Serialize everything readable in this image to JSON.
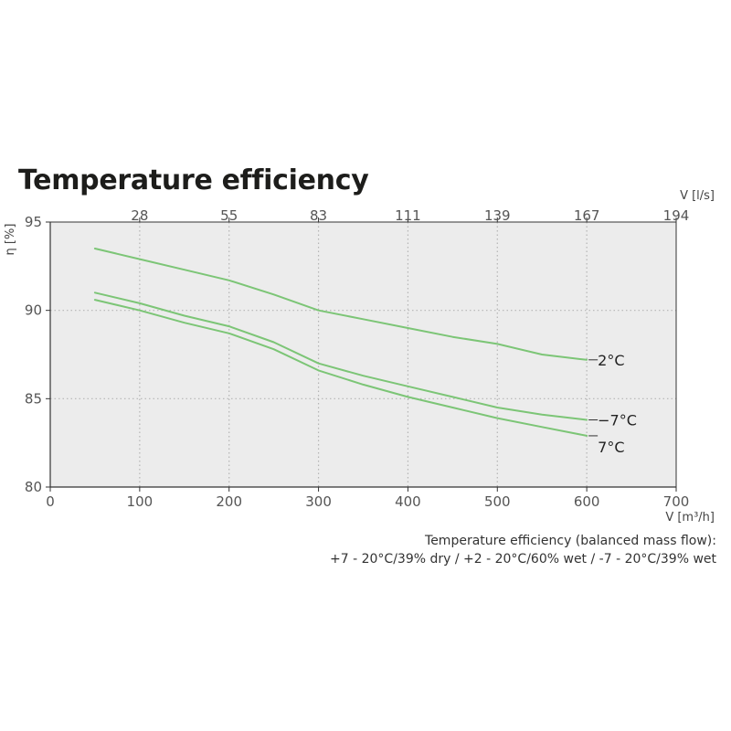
{
  "chart_data": {
    "type": "line",
    "title": "Temperature efficiency",
    "ylabel": "η [%]",
    "xlabel": "V [m³/h]",
    "x2label": "V [l/s]",
    "xlim": [
      0,
      700
    ],
    "ylim": [
      80,
      95
    ],
    "xticks": [
      "0",
      "100",
      "200",
      "300",
      "400",
      "500",
      "600",
      "700"
    ],
    "yticks": [
      "80",
      "85",
      "90",
      "95"
    ],
    "x2ticks": [
      {
        "label": "28",
        "x": 100
      },
      {
        "label": "55",
        "x": 200
      },
      {
        "label": "83",
        "x": 300
      },
      {
        "label": "111",
        "x": 400
      },
      {
        "label": "139",
        "x": 500
      },
      {
        "label": "167",
        "x": 600
      },
      {
        "label": "194",
        "x": 700
      }
    ],
    "grid": true,
    "series": [
      {
        "name": "2°C",
        "x": [
          50,
          100,
          150,
          200,
          250,
          300,
          350,
          400,
          450,
          500,
          550,
          600
        ],
        "y": [
          93.5,
          92.9,
          92.3,
          91.7,
          90.9,
          90.0,
          89.5,
          89.0,
          88.5,
          88.1,
          87.5,
          87.2
        ]
      },
      {
        "name": "−7°C",
        "x": [
          50,
          100,
          150,
          200,
          250,
          300,
          350,
          400,
          450,
          500,
          550,
          600
        ],
        "y": [
          91.0,
          90.4,
          89.7,
          89.1,
          88.2,
          87.0,
          86.3,
          85.7,
          85.1,
          84.5,
          84.1,
          83.8
        ]
      },
      {
        "name": "7°C",
        "x": [
          50,
          100,
          150,
          200,
          250,
          300,
          350,
          400,
          450,
          500,
          550,
          600
        ],
        "y": [
          90.6,
          90.0,
          89.3,
          88.7,
          87.8,
          86.6,
          85.8,
          85.1,
          84.5,
          83.9,
          83.4,
          82.9
        ]
      }
    ],
    "line_color": "#7cc576"
  },
  "caption": {
    "line1": "Temperature efficiency (balanced mass flow):",
    "line2": "+7 - 20°C/39% dry / +2 - 20°C/60% wet / -7 - 20°C/39% wet"
  }
}
